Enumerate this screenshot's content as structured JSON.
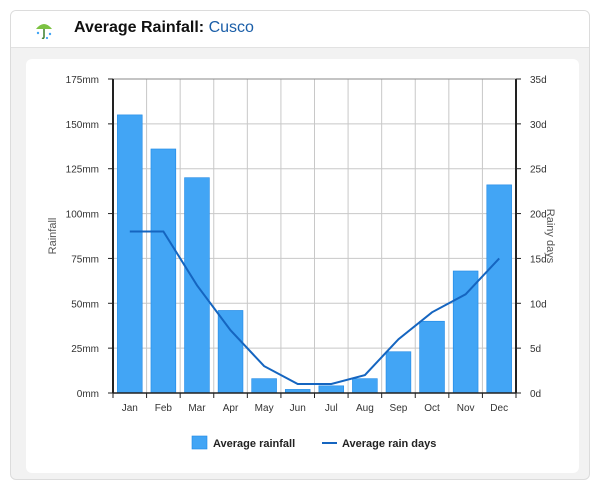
{
  "header": {
    "title_prefix": "Average Rainfall:",
    "title_city": "Cusco",
    "logo_icon": "umbrella-rain-icon"
  },
  "chart_data": {
    "type": "bar",
    "categories": [
      "Jan",
      "Feb",
      "Mar",
      "Apr",
      "May",
      "Jun",
      "Jul",
      "Aug",
      "Sep",
      "Oct",
      "Nov",
      "Dec"
    ],
    "series": [
      {
        "name": "Average rainfall",
        "type": "bar",
        "axis": "left",
        "color": "#42a5f5",
        "values": [
          155,
          136,
          120,
          46,
          8,
          2,
          4,
          8,
          23,
          40,
          68,
          116
        ]
      },
      {
        "name": "Average rain days",
        "type": "line",
        "axis": "right",
        "color": "#1565c0",
        "values": [
          18,
          18,
          12,
          7,
          3,
          1,
          1,
          2,
          6,
          9,
          11,
          15
        ]
      }
    ],
    "ylabel": "Rainfall",
    "y2label": "Rainy days",
    "ylim": [
      0,
      175
    ],
    "y2lim": [
      0,
      35
    ],
    "yticks": [
      "0mm",
      "25mm",
      "50mm",
      "75mm",
      "100mm",
      "125mm",
      "150mm",
      "175mm"
    ],
    "y2ticks": [
      "0d",
      "5d",
      "10d",
      "15d",
      "20d",
      "25d",
      "30d",
      "35d"
    ],
    "grid": true,
    "legend": "bottom-center"
  }
}
